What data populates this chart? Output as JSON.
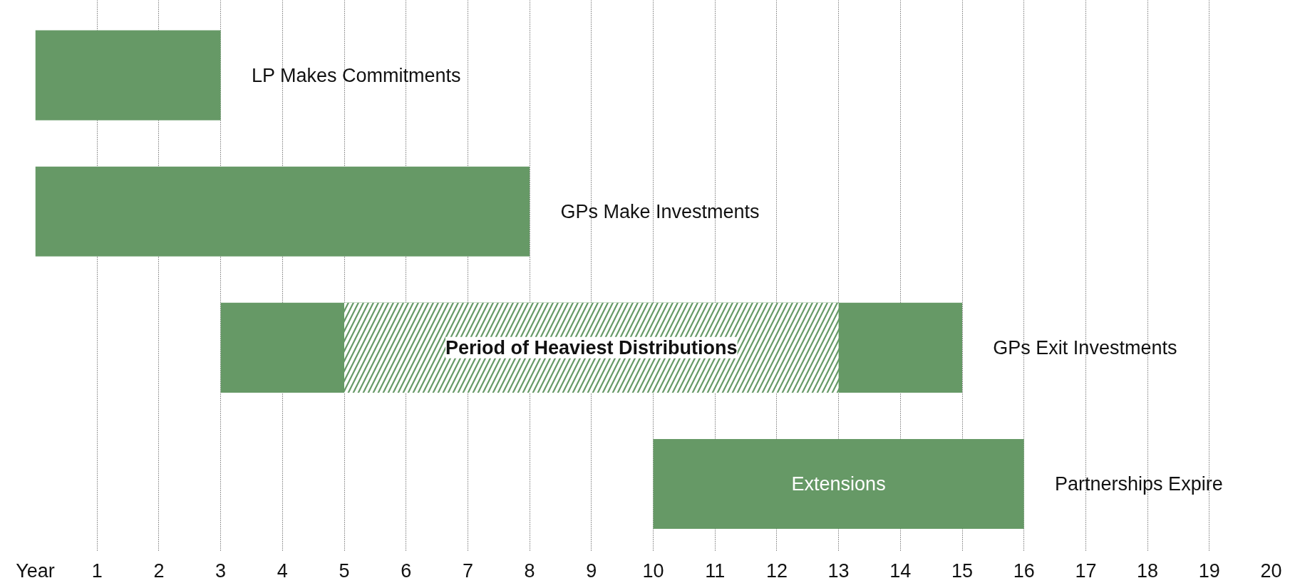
{
  "chart_data": {
    "type": "bar",
    "orientation": "horizontal",
    "categories": [
      "LP Makes Commitments",
      "GPs Make Investments",
      "GPs Exit Investments",
      "Partnerships Expire"
    ],
    "series": [
      {
        "color": "#669966",
        "base": [
          0,
          0,
          3,
          10
        ],
        "values": [
          3,
          8,
          12,
          6
        ]
      }
    ],
    "xlim": [
      0,
      20
    ],
    "xticks": [
      {
        "value": 0,
        "label": "Year"
      },
      1,
      2,
      3,
      4,
      5,
      6,
      7,
      8,
      9,
      10,
      11,
      12,
      13,
      14,
      15,
      16,
      17,
      18,
      19,
      20
    ],
    "grid": "x",
    "bands": [
      {
        "axis": "x",
        "from": 5,
        "to": 13,
        "label": "Period of Heaviest Distributions"
      }
    ],
    "annotations": [
      "Extensions"
    ]
  }
}
